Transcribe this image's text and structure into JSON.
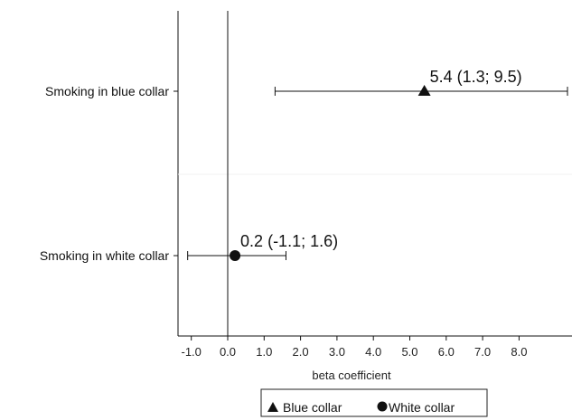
{
  "chart_data": {
    "type": "scatter",
    "subtype": "forest-plot",
    "title": "",
    "xlabel": "beta coefficient",
    "ylabel": "",
    "xlim": [
      -1.3,
      9.6
    ],
    "xticks": [
      -1.0,
      0.0,
      1.0,
      2.0,
      3.0,
      4.0,
      5.0,
      6.0,
      7.0,
      8.0
    ],
    "xtick_labels": [
      "-1.0",
      "0.0",
      "1.0",
      "2.0",
      "3.0",
      "4.0",
      "5.0",
      "6.0",
      "7.0",
      "8.0"
    ],
    "reference_line_x": 0,
    "grid": false,
    "legend_position": "bottom-center",
    "series": [
      {
        "name": "Blue collar",
        "category": "Smoking in blue collar",
        "marker": "triangle",
        "estimate": 5.4,
        "ci_low": 1.3,
        "ci_high": 9.5,
        "annotation": "5.4 (1.3; 9.5)"
      },
      {
        "name": "White collar",
        "category": "Smoking in white collar",
        "marker": "circle",
        "estimate": 0.2,
        "ci_low": -1.1,
        "ci_high": 1.6,
        "annotation": "0.2 (-1.1; 1.6)"
      }
    ],
    "colors": {
      "marker": "#111111",
      "axis": "#111111"
    }
  }
}
